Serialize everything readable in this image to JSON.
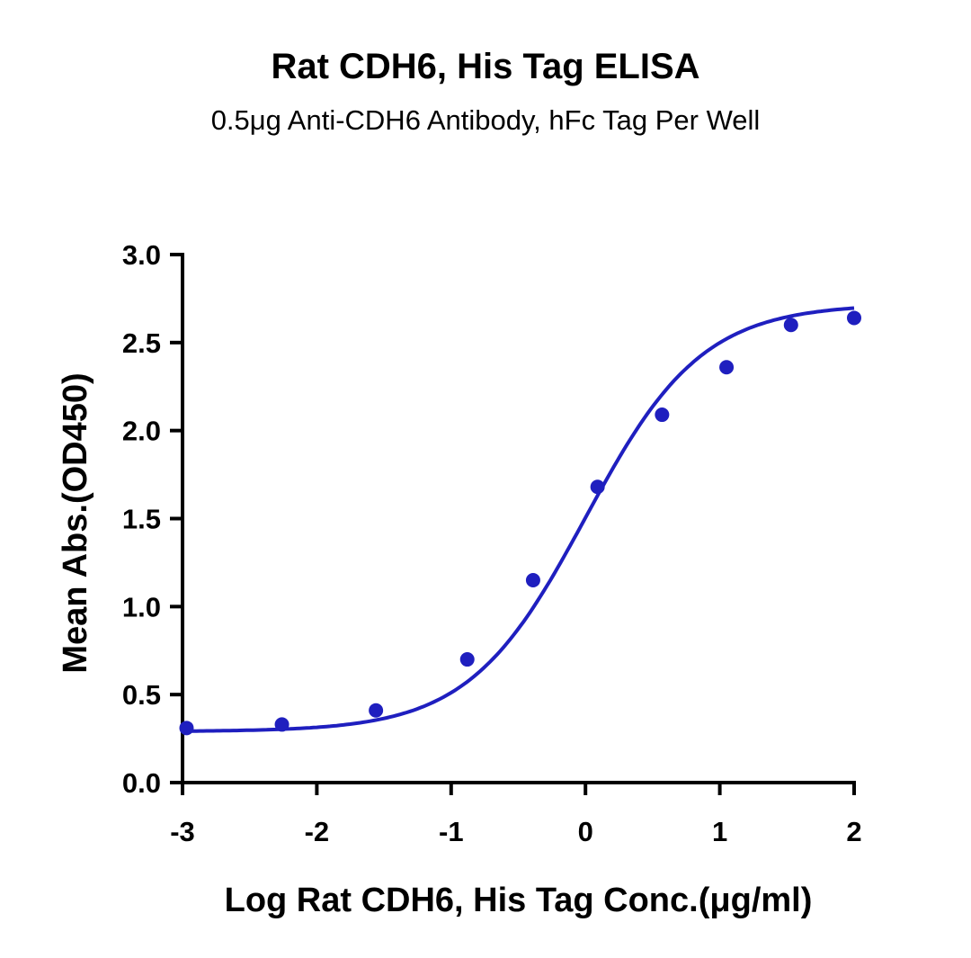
{
  "chart_data": {
    "type": "scatter",
    "title": "Rat CDH6, His Tag ELISA",
    "subtitle": "0.5μg Anti-CDH6 Antibody, hFc Tag Per Well",
    "xlabel": "Log Rat CDH6, His Tag Conc.(μg/ml)",
    "ylabel": "Mean Abs.(OD450)",
    "xlim": [
      -3,
      2
    ],
    "ylim": [
      0,
      3
    ],
    "xticks": [
      "-3",
      "-2",
      "-1",
      "0",
      "1",
      "2"
    ],
    "yticks": [
      "0.0",
      "0.5",
      "1.0",
      "1.5",
      "2.0",
      "2.5",
      "3.0"
    ],
    "grid": false,
    "legend": "none",
    "series": [
      {
        "color": "#1f1fbf",
        "points": [
          {
            "x": -2.97,
            "y": 0.31
          },
          {
            "x": -2.26,
            "y": 0.33
          },
          {
            "x": -1.56,
            "y": 0.41
          },
          {
            "x": -0.88,
            "y": 0.7
          },
          {
            "x": -0.39,
            "y": 1.15
          },
          {
            "x": 0.09,
            "y": 1.68
          },
          {
            "x": 0.57,
            "y": 2.09
          },
          {
            "x": 1.05,
            "y": 2.36
          },
          {
            "x": 1.53,
            "y": 2.6
          },
          {
            "x": 2.0,
            "y": 2.64
          }
        ],
        "fit": {
          "model": "4PL",
          "bottom": 0.29,
          "top": 2.72,
          "log_ec50": 0.0,
          "hill_slope": 1.0
        }
      }
    ]
  }
}
